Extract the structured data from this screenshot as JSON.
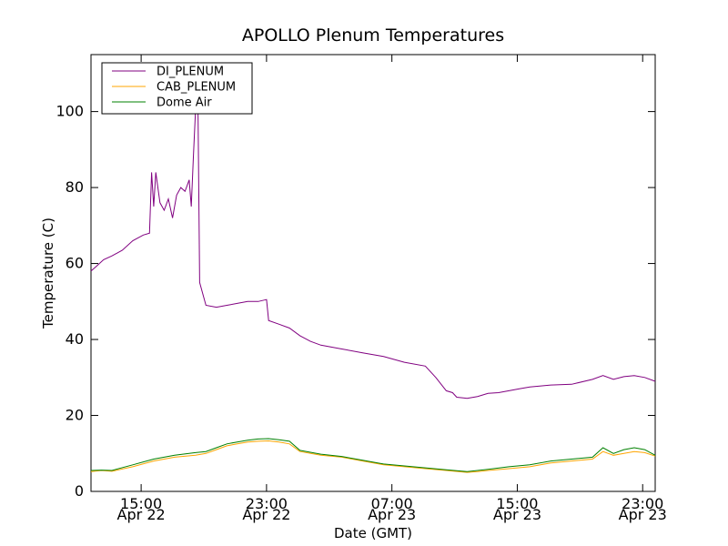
{
  "chart_data": {
    "type": "line",
    "title": "APOLLO Plenum Temperatures",
    "xlabel": "Date (GMT)",
    "ylabel": "Temperature (C)",
    "x_unit": "hours since Apr 22 11:00 GMT",
    "xlim": [
      0,
      27
    ],
    "ylim": [
      0,
      115
    ],
    "yticks": [
      0,
      20,
      40,
      60,
      80,
      100
    ],
    "xticks": [
      {
        "x": 2.4,
        "line1": "15:00",
        "line2": "Apr 22"
      },
      {
        "x": 8.4,
        "line1": "23:00",
        "line2": "Apr 22"
      },
      {
        "x": 14.4,
        "line1": "07:00",
        "line2": "Apr 23"
      },
      {
        "x": 20.4,
        "line1": "15:00",
        "line2": "Apr 23"
      },
      {
        "x": 26.4,
        "line1": "23:00",
        "line2": "Apr 23"
      }
    ],
    "legend_position": "top-left",
    "series": [
      {
        "name": "DI_PLENUM",
        "color": "#800080",
        "x": [
          0,
          0.3,
          0.6,
          1.0,
          1.5,
          2.0,
          2.5,
          2.8,
          2.9,
          3.0,
          3.1,
          3.3,
          3.5,
          3.7,
          3.9,
          4.1,
          4.3,
          4.5,
          4.7,
          4.8,
          4.9,
          5.0,
          5.1,
          5.2,
          5.5,
          6.0,
          6.5,
          7.0,
          7.5,
          8.0,
          8.4,
          8.5,
          9.0,
          9.5,
          10.0,
          10.5,
          11.0,
          11.5,
          12.0,
          13.0,
          14.0,
          15.0,
          16.0,
          16.5,
          17.0,
          17.3,
          17.5,
          18.0,
          18.5,
          19.0,
          19.5,
          20.0,
          20.5,
          21.0,
          22.0,
          23.0,
          24.0,
          24.5,
          25.0,
          25.5,
          26.0,
          26.5,
          27.0
        ],
        "values": [
          58,
          59.5,
          61,
          62,
          63.5,
          66,
          67.5,
          68,
          84,
          75,
          84,
          76,
          74,
          77,
          72,
          78,
          80,
          79,
          82,
          75,
          88,
          100,
          113,
          55,
          49,
          48.5,
          49,
          49.5,
          50,
          50,
          50.5,
          45,
          44,
          43,
          41,
          39.5,
          38.5,
          38,
          37.5,
          36.5,
          35.5,
          34,
          33,
          30,
          26.5,
          26,
          24.8,
          24.5,
          25,
          25.8,
          26,
          26.5,
          27,
          27.5,
          28,
          28.2,
          29.5,
          30.5,
          29.5,
          30.2,
          30.5,
          30,
          29
        ]
      },
      {
        "name": "CAB_PLENUM",
        "color": "#ffa500",
        "x": [
          0,
          0.5,
          1.0,
          2.0,
          3.0,
          4.0,
          5.0,
          5.5,
          6.0,
          6.5,
          7.0,
          7.5,
          8.0,
          8.5,
          9.0,
          9.5,
          10.0,
          11.0,
          12.0,
          13.0,
          14.0,
          15.0,
          16.0,
          17.0,
          18.0,
          18.5,
          19.0,
          20.0,
          21.0,
          22.0,
          23.0,
          24.0,
          24.5,
          25.0,
          25.5,
          26.0,
          26.5,
          27.0
        ],
        "values": [
          5.2,
          5.5,
          5.3,
          6.5,
          8,
          9,
          9.5,
          10,
          11,
          12,
          12.5,
          13,
          13.2,
          13.3,
          13,
          12.5,
          10.5,
          9.5,
          9,
          8,
          7,
          6.5,
          6,
          5.5,
          5,
          5.2,
          5.5,
          6,
          6.5,
          7.5,
          8,
          8.5,
          10.5,
          9.5,
          10,
          10.5,
          10.2,
          9.3
        ]
      },
      {
        "name": "Dome Air",
        "color": "#008000",
        "x": [
          0,
          0.5,
          1.0,
          2.0,
          3.0,
          4.0,
          5.0,
          5.5,
          6.0,
          6.5,
          7.0,
          7.5,
          8.0,
          8.5,
          9.0,
          9.5,
          10.0,
          11.0,
          12.0,
          13.0,
          14.0,
          15.0,
          16.0,
          17.0,
          18.0,
          18.5,
          19.0,
          20.0,
          21.0,
          22.0,
          23.0,
          24.0,
          24.5,
          25.0,
          25.5,
          26.0,
          26.5,
          27.0
        ],
        "values": [
          5.5,
          5.6,
          5.5,
          7,
          8.5,
          9.5,
          10.2,
          10.5,
          11.5,
          12.5,
          13,
          13.5,
          13.8,
          13.9,
          13.6,
          13.2,
          10.8,
          9.8,
          9.2,
          8.2,
          7.2,
          6.7,
          6.2,
          5.7,
          5.2,
          5.5,
          5.8,
          6.5,
          7,
          8,
          8.5,
          9,
          11.5,
          10,
          11,
          11.5,
          11,
          9.5
        ]
      }
    ]
  }
}
